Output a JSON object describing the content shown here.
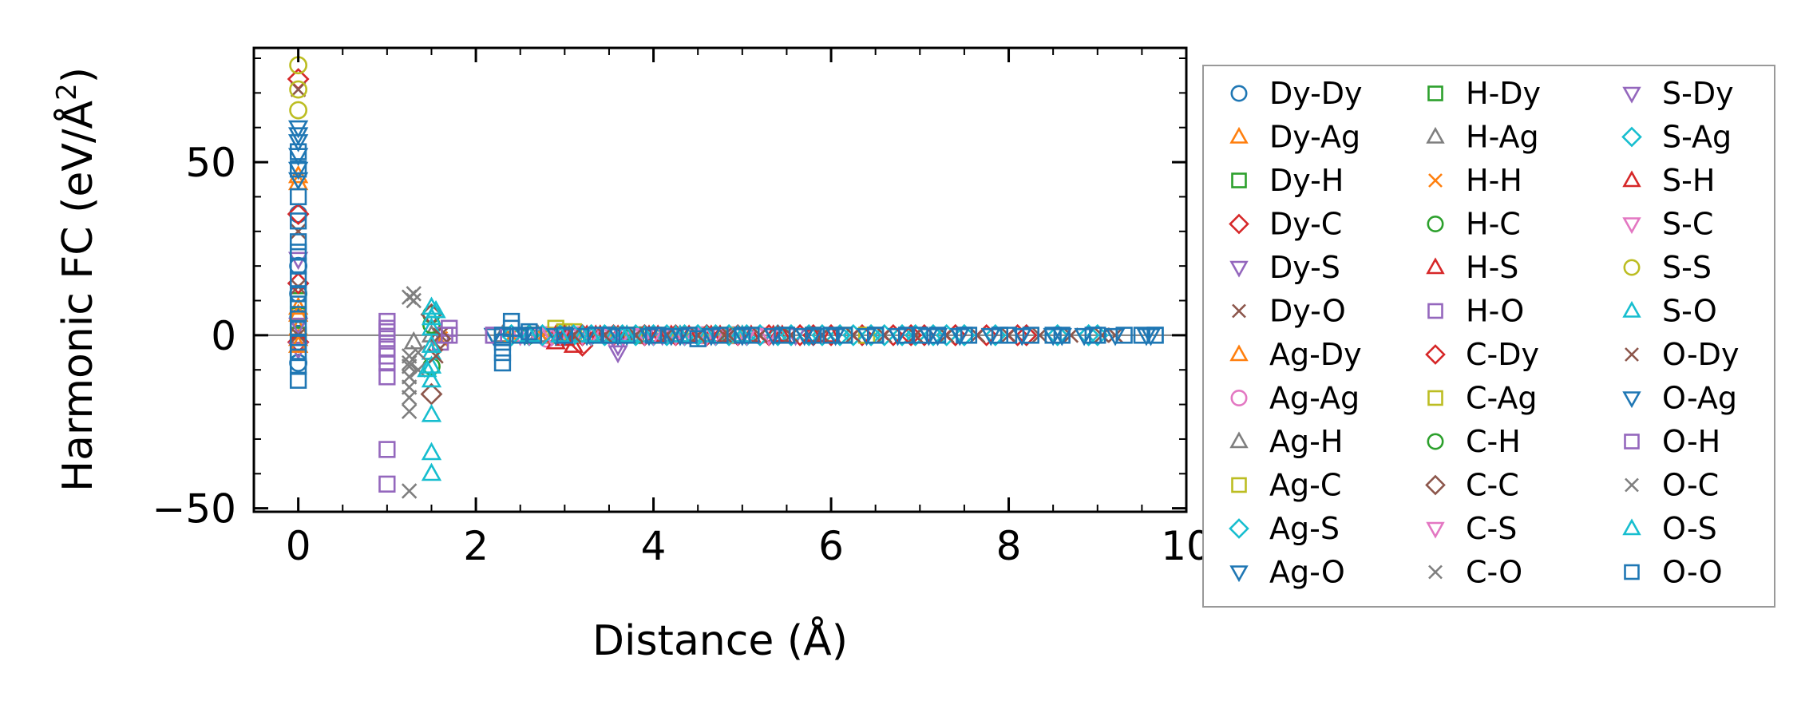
{
  "chart_data": {
    "type": "scatter",
    "title": "",
    "xlabel": "Distance (Å)",
    "ylabel": "Harmonic FC (eV/Å²)",
    "ylabel_parts": [
      "Harmonic FC (eV/Å",
      "2",
      ")"
    ],
    "xlim": [
      -0.5,
      10.0
    ],
    "ylim": [
      -51,
      83
    ],
    "xticks": [
      0,
      2,
      4,
      6,
      8,
      10
    ],
    "xtick_labels": [
      "0",
      "2",
      "4",
      "6",
      "8",
      "10"
    ],
    "yticks": [
      -50,
      0,
      50
    ],
    "ytick_labels": [
      "−50",
      "0",
      "50"
    ],
    "grid": false,
    "zero_line": true,
    "legend": {
      "placement": "outside-right",
      "columns": 3
    },
    "series": [
      {
        "name": "Dy-Dy",
        "marker": "circle",
        "color": "#1f77b4",
        "points": [
          [
            0,
            -8
          ],
          [
            0,
            -2
          ],
          [
            0,
            5
          ],
          [
            0,
            12
          ],
          [
            0,
            20
          ],
          [
            0,
            35
          ]
        ]
      },
      {
        "name": "Dy-Ag",
        "marker": "triangle-up",
        "color": "#ff7f0e",
        "points": [
          [
            0,
            2
          ],
          [
            0,
            8
          ],
          [
            0,
            -1
          ],
          [
            0,
            46
          ]
        ]
      },
      {
        "name": "Dy-H",
        "marker": "square",
        "color": "#2ca02c",
        "points": [
          [
            0,
            0
          ],
          [
            0,
            10
          ]
        ]
      },
      {
        "name": "Dy-C",
        "marker": "diamond",
        "color": "#d62728",
        "points": [
          [
            0,
            15
          ],
          [
            0,
            35
          ],
          [
            0,
            74
          ],
          [
            0,
            -2
          ]
        ]
      },
      {
        "name": "Dy-S",
        "marker": "triangle-down",
        "color": "#9467bd",
        "points": [
          [
            0,
            -4
          ],
          [
            0,
            3
          ],
          [
            0,
            22
          ]
        ]
      },
      {
        "name": "Dy-O",
        "marker": "x",
        "color": "#8c564b",
        "points": [
          [
            0,
            0
          ],
          [
            0,
            14
          ],
          [
            0,
            30
          ],
          [
            0,
            71
          ]
        ]
      },
      {
        "name": "Ag-Dy",
        "marker": "triangle-up",
        "color": "#ff7f0e",
        "points": [
          [
            0,
            -3
          ],
          [
            0,
            6
          ],
          [
            0,
            44
          ]
        ]
      },
      {
        "name": "Ag-Ag",
        "marker": "circle",
        "color": "#e377c2",
        "points": [
          [
            2.8,
            -1
          ],
          [
            3.6,
            0
          ],
          [
            4.4,
            0
          ],
          [
            5.2,
            0
          ]
        ]
      },
      {
        "name": "Ag-H",
        "marker": "triangle-up",
        "color": "#7f7f7f",
        "points": [
          [
            1.3,
            -2
          ],
          [
            1.5,
            0
          ],
          [
            2.3,
            0
          ]
        ]
      },
      {
        "name": "Ag-C",
        "marker": "square",
        "color": "#bcbd22",
        "points": [
          [
            2.9,
            2
          ],
          [
            3.1,
            1
          ],
          [
            3.5,
            0
          ],
          [
            4.0,
            0
          ],
          [
            4.7,
            0
          ]
        ]
      },
      {
        "name": "Ag-S",
        "marker": "diamond",
        "color": "#17becf",
        "points": [
          [
            2.6,
            0
          ],
          [
            3.2,
            0
          ],
          [
            3.9,
            0
          ],
          [
            4.6,
            0
          ],
          [
            9.0,
            0
          ]
        ]
      },
      {
        "name": "Ag-O",
        "marker": "triangle-down",
        "color": "#1f77b4",
        "points": [
          [
            0,
            48
          ],
          [
            0,
            56
          ],
          [
            0,
            60
          ],
          [
            2.5,
            0
          ],
          [
            3.7,
            0
          ]
        ]
      },
      {
        "name": "H-Dy",
        "marker": "square",
        "color": "#2ca02c",
        "points": [
          [
            2.3,
            0
          ],
          [
            3.0,
            0
          ],
          [
            3.8,
            0
          ]
        ]
      },
      {
        "name": "H-Ag",
        "marker": "triangle-up",
        "color": "#7f7f7f",
        "points": [
          [
            2.7,
            0
          ],
          [
            3.4,
            0
          ]
        ]
      },
      {
        "name": "H-H",
        "marker": "x",
        "color": "#ff7f0e",
        "points": [
          [
            1.6,
            -1
          ],
          [
            2.4,
            0
          ],
          [
            3.3,
            0
          ]
        ]
      },
      {
        "name": "H-C",
        "marker": "circle",
        "color": "#2ca02c",
        "points": [
          [
            1.5,
            3
          ],
          [
            2.6,
            0
          ]
        ]
      },
      {
        "name": "H-S",
        "marker": "triangle-up",
        "color": "#d62728",
        "points": [
          [
            2.9,
            -2
          ],
          [
            3.1,
            -3
          ],
          [
            4.2,
            0
          ],
          [
            5.4,
            0
          ]
        ]
      },
      {
        "name": "H-O",
        "marker": "square",
        "color": "#9467bd",
        "points": [
          [
            1.0,
            -43
          ],
          [
            1.0,
            -33
          ],
          [
            1.0,
            -12
          ],
          [
            1.0,
            -8
          ],
          [
            1.0,
            -4
          ],
          [
            1.0,
            -1
          ],
          [
            1.0,
            1
          ],
          [
            1.0,
            4
          ],
          [
            1.6,
            -2
          ],
          [
            1.65,
            0
          ],
          [
            1.7,
            2
          ]
        ]
      },
      {
        "name": "C-Dy",
        "marker": "diamond",
        "color": "#d62728",
        "points": [
          [
            3.2,
            -3
          ],
          [
            4.6,
            0
          ],
          [
            5.8,
            0
          ],
          [
            6.9,
            0
          ],
          [
            7.4,
            0
          ],
          [
            8.2,
            0
          ]
        ]
      },
      {
        "name": "C-Ag",
        "marker": "square",
        "color": "#bcbd22",
        "points": [
          [
            3.0,
            1
          ],
          [
            3.6,
            0
          ],
          [
            4.9,
            0
          ],
          [
            6.4,
            0
          ]
        ]
      },
      {
        "name": "C-H",
        "marker": "circle",
        "color": "#2ca02c",
        "points": [
          [
            1.5,
            -9
          ],
          [
            1.5,
            6
          ]
        ]
      },
      {
        "name": "C-C",
        "marker": "diamond",
        "color": "#8c564b",
        "points": [
          [
            1.5,
            -17
          ],
          [
            1.5,
            6
          ],
          [
            1.6,
            -1
          ]
        ]
      },
      {
        "name": "C-S",
        "marker": "triangle-down",
        "color": "#e377c2",
        "points": [
          [
            2.5,
            0
          ],
          [
            3.5,
            0
          ],
          [
            5.0,
            0
          ]
        ]
      },
      {
        "name": "C-O",
        "marker": "x",
        "color": "#7f7f7f",
        "points": [
          [
            1.25,
            -45
          ],
          [
            1.25,
            -22
          ],
          [
            1.25,
            -18
          ],
          [
            1.25,
            -12
          ],
          [
            1.25,
            -8
          ],
          [
            1.25,
            -6
          ],
          [
            1.25,
            11
          ],
          [
            1.3,
            10
          ],
          [
            1.35,
            -10
          ]
        ]
      },
      {
        "name": "S-Dy",
        "marker": "triangle-down",
        "color": "#9467bd",
        "points": [
          [
            3.6,
            -5
          ],
          [
            3.6,
            -3
          ],
          [
            4.1,
            0
          ],
          [
            5.6,
            0
          ]
        ]
      },
      {
        "name": "S-Ag",
        "marker": "diamond",
        "color": "#17becf",
        "points": [
          [
            2.4,
            0
          ],
          [
            3.3,
            0
          ],
          [
            4.5,
            0
          ],
          [
            7.5,
            0
          ]
        ]
      },
      {
        "name": "S-H",
        "marker": "triangle-up",
        "color": "#d62728",
        "points": [
          [
            3.0,
            -1
          ],
          [
            3.4,
            0
          ],
          [
            6.0,
            0
          ]
        ]
      },
      {
        "name": "S-C",
        "marker": "triangle-down",
        "color": "#e377c2",
        "points": [
          [
            2.6,
            0
          ],
          [
            3.9,
            0
          ],
          [
            5.3,
            0
          ]
        ]
      },
      {
        "name": "S-S",
        "marker": "circle",
        "color": "#bcbd22",
        "points": [
          [
            0,
            65
          ],
          [
            0,
            71
          ],
          [
            0,
            78
          ]
        ]
      },
      {
        "name": "S-O",
        "marker": "triangle-up",
        "color": "#17becf",
        "points": [
          [
            1.5,
            -40
          ],
          [
            1.5,
            -34
          ],
          [
            1.5,
            -23
          ],
          [
            1.5,
            -13
          ],
          [
            1.5,
            -9
          ],
          [
            1.5,
            -5
          ],
          [
            1.5,
            2
          ],
          [
            1.5,
            5
          ],
          [
            1.5,
            8
          ],
          [
            3.2,
            0
          ],
          [
            4.3,
            0
          ],
          [
            5.0,
            0
          ]
        ]
      },
      {
        "name": "O-Dy",
        "marker": "x",
        "color": "#8c564b",
        "points": [
          [
            1.55,
            -6
          ],
          [
            1.6,
            0
          ],
          [
            3.1,
            0
          ],
          [
            4.8,
            0
          ],
          [
            9.2,
            0
          ]
        ]
      },
      {
        "name": "O-Ag",
        "marker": "triangle-down",
        "color": "#1f77b4",
        "points": [
          [
            0,
            45
          ],
          [
            0,
            52
          ],
          [
            0,
            58
          ],
          [
            2.2,
            0
          ],
          [
            3.0,
            0
          ],
          [
            4.2,
            0
          ],
          [
            5.8,
            0
          ],
          [
            7.2,
            0
          ],
          [
            8.6,
            0
          ],
          [
            9.6,
            0
          ]
        ]
      },
      {
        "name": "O-H",
        "marker": "square",
        "color": "#9467bd",
        "points": [
          [
            1.0,
            -6
          ],
          [
            1.0,
            2
          ],
          [
            1.7,
            0
          ],
          [
            2.2,
            0
          ]
        ]
      },
      {
        "name": "O-C",
        "marker": "x",
        "color": "#7f7f7f",
        "points": [
          [
            1.25,
            -15
          ],
          [
            1.25,
            -9
          ],
          [
            1.3,
            12
          ],
          [
            1.35,
            -5
          ]
        ]
      },
      {
        "name": "O-S",
        "marker": "triangle-up",
        "color": "#17becf",
        "points": [
          [
            1.45,
            -10
          ],
          [
            1.5,
            -3
          ],
          [
            1.55,
            7
          ],
          [
            2.6,
            0
          ],
          [
            3.7,
            0
          ]
        ]
      },
      {
        "name": "O-O",
        "marker": "square",
        "color": "#1f77b4",
        "points": [
          [
            0,
            -13
          ],
          [
            0,
            -9
          ],
          [
            0,
            -5
          ],
          [
            0,
            -2
          ],
          [
            0,
            2
          ],
          [
            0,
            6
          ],
          [
            0,
            9
          ],
          [
            0,
            12
          ],
          [
            0,
            16
          ],
          [
            0,
            20
          ],
          [
            0,
            24
          ],
          [
            0,
            27
          ],
          [
            0,
            33
          ],
          [
            0,
            40
          ],
          [
            0,
            48
          ],
          [
            0,
            53
          ],
          [
            2.3,
            -8
          ],
          [
            2.3,
            -5
          ],
          [
            2.3,
            -2
          ],
          [
            2.4,
            2
          ],
          [
            2.4,
            4
          ],
          [
            2.5,
            0
          ],
          [
            2.6,
            1
          ],
          [
            3.5,
            0
          ],
          [
            4.0,
            0
          ],
          [
            4.5,
            -1
          ],
          [
            5.0,
            0
          ],
          [
            5.5,
            0
          ],
          [
            6.0,
            0
          ],
          [
            6.5,
            0
          ],
          [
            7.0,
            0
          ],
          [
            7.5,
            0
          ],
          [
            8.0,
            0
          ],
          [
            8.5,
            0
          ],
          [
            9.0,
            0
          ],
          [
            9.5,
            0
          ],
          [
            9.65,
            0
          ]
        ]
      }
    ]
  }
}
